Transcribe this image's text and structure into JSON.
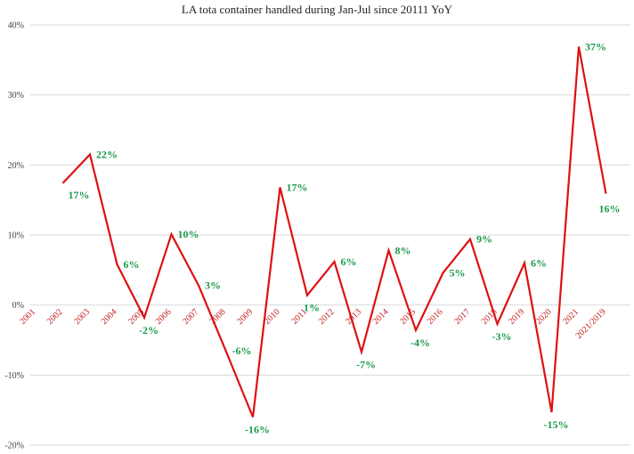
{
  "chart_data": {
    "type": "line",
    "title": "LA tota container handled during Jan-Jul since 20111 YoY",
    "xlabel": "",
    "ylabel": "",
    "ylim": [
      -20,
      40
    ],
    "yticks": [
      {
        "value": 40,
        "label": "40%"
      },
      {
        "value": 30,
        "label": "30%"
      },
      {
        "value": 20,
        "label": "20%"
      },
      {
        "value": 10,
        "label": "10%"
      },
      {
        "value": 0,
        "label": "0%"
      },
      {
        "value": -10,
        "label": "-10%"
      },
      {
        "value": -20,
        "label": "-20%"
      }
    ],
    "grid": true,
    "categories": [
      "2001",
      "2002",
      "2003",
      "2004",
      "2005",
      "2006",
      "2007",
      "2008",
      "2009",
      "2010",
      "2011",
      "2012",
      "2013",
      "2014",
      "2015",
      "2016",
      "2017",
      "2018",
      "2019",
      "2020",
      "2021",
      "2021/2019"
    ],
    "series": [
      {
        "name": "YoY",
        "values": [
          null,
          17.4,
          21.5,
          5.8,
          -1.8,
          10.1,
          2.8,
          -6.5,
          -16.0,
          16.8,
          1.4,
          6.2,
          -6.7,
          7.8,
          -3.6,
          4.6,
          9.4,
          -2.7,
          6.0,
          -15.3,
          36.9,
          15.9
        ],
        "labels": [
          null,
          "17%",
          "22%",
          "6%",
          "-2%",
          "10%",
          "3%",
          "-6%",
          "-16%",
          "17%",
          "1%",
          "6%",
          "-7%",
          "8%",
          "-4%",
          "5%",
          "9%",
          "-3%",
          "6%",
          "-15%",
          "37%",
          "16%"
        ]
      }
    ],
    "colors": {
      "line": "#dd1111",
      "data_label": "#1a9a4a",
      "tick_label": "#c41e1e",
      "grid": "#d9d9d9",
      "axis_text": "#444444"
    }
  }
}
